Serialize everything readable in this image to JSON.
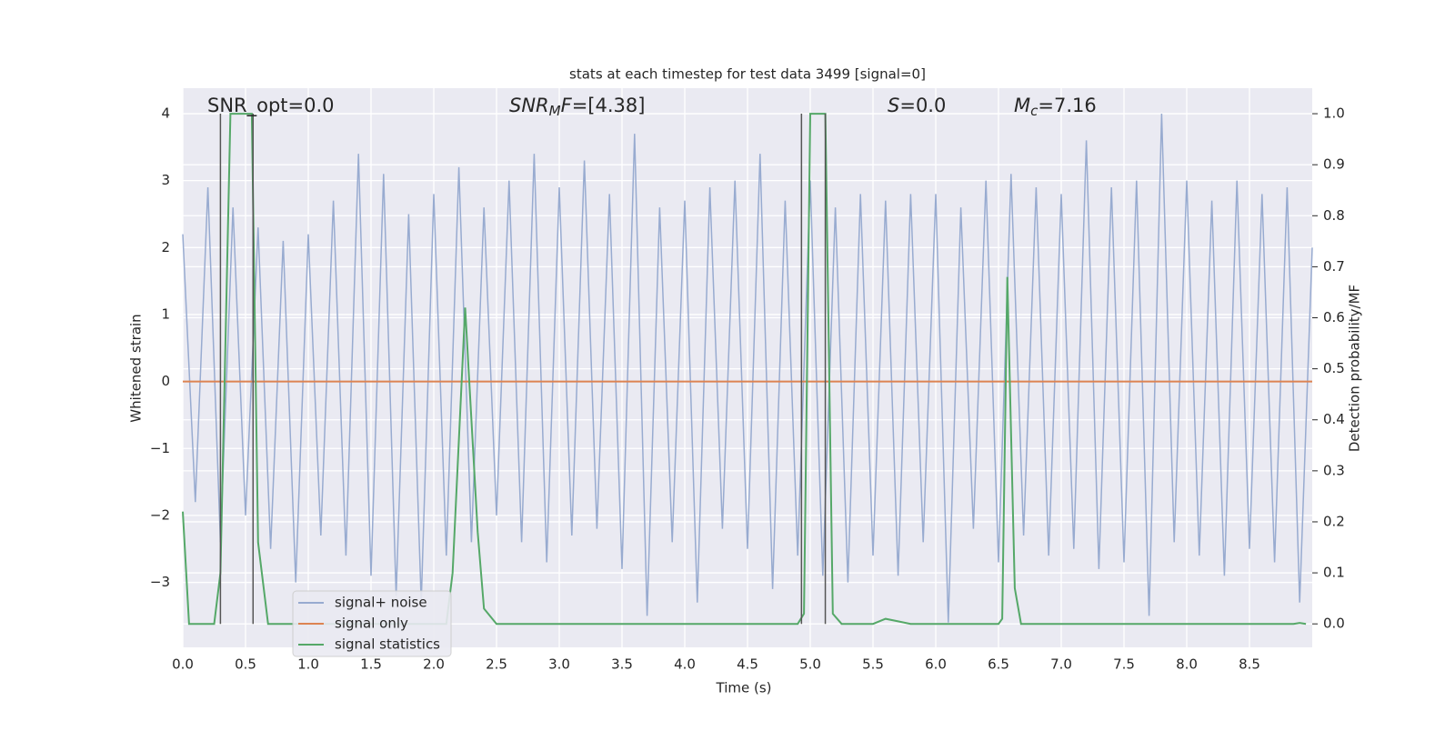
{
  "chart_data": {
    "type": "line",
    "title": "stats at each timestep for test data 3499 [signal=0]",
    "xlabel": "Time (s)",
    "ylabel": "Whitened strain",
    "y2label": "Detection probability/MF",
    "xlim": [
      0,
      9.0
    ],
    "ylim": [
      -3.97,
      4.38
    ],
    "y2lim": [
      -0.046,
      1.05
    ],
    "xticks": [
      {
        "value": 0,
        "label": "0.0"
      },
      0.5,
      {
        "value": 1,
        "label": "1.0"
      },
      1.5,
      {
        "value": 2,
        "label": "2.0"
      },
      2.5,
      {
        "value": 3,
        "label": "3.0"
      },
      3.5,
      {
        "value": 4,
        "label": "4.0"
      },
      4.5,
      {
        "value": 5,
        "label": "5.0"
      },
      5.5,
      {
        "value": 6,
        "label": "6.0"
      },
      6.5,
      {
        "value": 7,
        "label": "7.0"
      },
      7.5,
      {
        "value": 8,
        "label": "8.0"
      },
      8.5
    ],
    "yticks": [
      {
        "value": -3,
        "label": "−3"
      },
      {
        "value": -2,
        "label": "−2"
      },
      {
        "value": -1,
        "label": "−1"
      },
      0,
      1,
      2,
      3,
      4
    ],
    "y2ticks": [
      {
        "value": 0,
        "label": "0.0"
      },
      0.1,
      0.2,
      0.3,
      0.4,
      0.5,
      0.6,
      0.7,
      0.8,
      0.9,
      {
        "value": 1,
        "label": "1.0"
      }
    ],
    "grid": true,
    "legend": "lower left",
    "series": [
      {
        "name": "signal+ noise",
        "color": "#98abd0",
        "x": [
          0.0,
          0.1,
          0.2,
          0.3,
          0.4,
          0.5,
          0.6,
          0.7,
          0.8,
          0.9,
          1.0,
          1.1,
          1.2,
          1.3,
          1.4,
          1.5,
          1.6,
          1.7,
          1.8,
          1.9,
          2.0,
          2.1,
          2.2,
          2.3,
          2.4,
          2.5,
          2.6,
          2.7,
          2.8,
          2.9,
          3.0,
          3.1,
          3.2,
          3.3,
          3.4,
          3.5,
          3.6,
          3.7,
          3.8,
          3.9,
          4.0,
          4.1,
          4.2,
          4.3,
          4.4,
          4.5,
          4.6,
          4.7,
          4.8,
          4.9,
          5.0,
          5.1,
          5.2,
          5.3,
          5.4,
          5.5,
          5.6,
          5.7,
          5.8,
          5.9,
          6.0,
          6.1,
          6.2,
          6.3,
          6.4,
          6.5,
          6.6,
          6.7,
          6.8,
          6.9,
          7.0,
          7.1,
          7.2,
          7.3,
          7.4,
          7.5,
          7.6,
          7.7,
          7.8,
          7.9,
          8.0,
          8.1,
          8.2,
          8.3,
          8.4,
          8.5,
          8.6,
          8.7,
          8.8,
          8.9,
          9.0
        ],
        "values": [
          2.2,
          -1.8,
          2.9,
          -2.4,
          2.6,
          -2.0,
          2.3,
          -2.5,
          2.1,
          -3.0,
          2.2,
          -2.3,
          2.7,
          -2.6,
          3.4,
          -2.9,
          3.1,
          -3.2,
          2.5,
          -3.3,
          2.8,
          -2.6,
          3.2,
          -2.4,
          2.6,
          -2.0,
          3.0,
          -2.4,
          3.4,
          -2.7,
          2.9,
          -2.3,
          3.3,
          -2.2,
          2.8,
          -2.8,
          3.7,
          -3.5,
          2.6,
          -2.4,
          2.7,
          -3.3,
          2.9,
          -2.2,
          3.0,
          -2.5,
          3.4,
          -3.1,
          2.7,
          -2.6,
          3.0,
          -2.9,
          2.6,
          -3.0,
          2.8,
          -2.6,
          2.7,
          -2.9,
          2.8,
          -2.4,
          2.8,
          -3.6,
          2.6,
          -2.2,
          3.0,
          -2.7,
          3.1,
          -2.3,
          2.9,
          -2.6,
          2.8,
          -2.5,
          3.6,
          -2.8,
          2.9,
          -2.7,
          3.0,
          -3.5,
          4.0,
          -2.4,
          3.0,
          -2.6,
          2.7,
          -2.9,
          3.0,
          -2.5,
          2.8,
          -2.7,
          2.9,
          -3.3,
          2.0
        ]
      },
      {
        "name": "signal only",
        "color": "#dd8452",
        "x": [
          0,
          9.0
        ],
        "values": [
          0,
          0
        ]
      },
      {
        "name": "signal statistics",
        "color": "#55a868",
        "axis": "y2",
        "x": [
          0,
          0.05,
          0.25,
          0.3,
          0.38,
          0.55,
          0.6,
          0.68,
          2.1,
          2.15,
          2.25,
          2.35,
          2.4,
          2.5,
          4.9,
          4.95,
          5.0,
          5.12,
          5.18,
          5.25,
          5.5,
          5.6,
          5.7,
          5.8,
          6.5,
          6.53,
          6.57,
          6.63,
          6.68,
          8.85,
          8.9,
          8.95
        ],
        "values": [
          0.22,
          0,
          0,
          0.1,
          1.0,
          1.0,
          0.16,
          0,
          0,
          0.1,
          0.62,
          0.18,
          0.03,
          0,
          0,
          0.02,
          1.0,
          1.0,
          0.02,
          0,
          0,
          0.01,
          0.005,
          0,
          0,
          0.01,
          0.68,
          0.07,
          0,
          0,
          0.002,
          0
        ]
      }
    ],
    "vlines": {
      "x": [
        0.3,
        0.56,
        4.93,
        5.12
      ],
      "color": "#555555"
    },
    "annotations": [
      [
        {
          "text": "SNR_opt=0.0",
          "style": "normal"
        }
      ],
      [
        {
          "text": "SNR",
          "style": "italic"
        },
        {
          "text": "M",
          "style": "sub"
        },
        {
          "text": "F",
          "style": "italic"
        },
        {
          "text": "=[4.38]",
          "style": "normal"
        }
      ],
      [
        {
          "text": "S",
          "style": "italic"
        },
        {
          "text": "=0.0",
          "style": "normal"
        }
      ],
      [
        {
          "text": "M",
          "style": "italic"
        },
        {
          "text": "c",
          "style": "sub"
        },
        {
          "text": "=7.16",
          "style": "normal"
        }
      ]
    ]
  }
}
